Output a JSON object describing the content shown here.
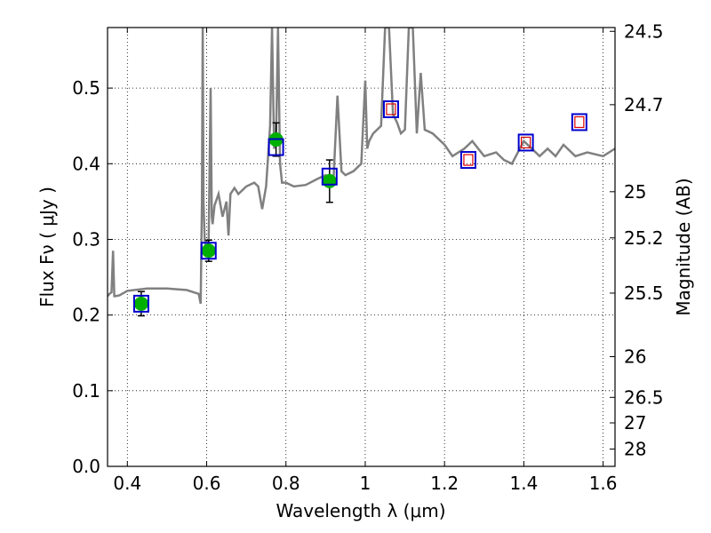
{
  "chart_data": {
    "type": "scatter",
    "title": "",
    "xlabel": "Wavelength  λ (μm)",
    "ylabel": "Flux  Fν  ( μJy )",
    "y2label": "Magnitude (AB)",
    "xlim": [
      0.35,
      1.63
    ],
    "ylim": [
      0.0,
      0.58
    ],
    "grid": true,
    "x_ticks": [
      0.4,
      0.6,
      0.8,
      1.0,
      1.2,
      1.4,
      1.6
    ],
    "x_tick_labels": [
      "0.4",
      "0.6",
      "0.8",
      "1",
      "1.2",
      "1.4",
      "1.6"
    ],
    "y_ticks": [
      0.0,
      0.1,
      0.2,
      0.3,
      0.4,
      0.5
    ],
    "y_tick_labels": [
      "0.0",
      "0.1",
      "0.2",
      "0.3",
      "0.4",
      "0.5"
    ],
    "y2_ticks": [
      {
        "label": "24.5",
        "flux": 0.575
      },
      {
        "label": "24.7",
        "flux": 0.478
      },
      {
        "label": "25",
        "flux": 0.363
      },
      {
        "label": "25.2",
        "flux": 0.302
      },
      {
        "label": "25.5",
        "flux": 0.229
      },
      {
        "label": "26",
        "flux": 0.145
      },
      {
        "label": "26.5",
        "flux": 0.0912
      },
      {
        "label": "27",
        "flux": 0.0575
      },
      {
        "label": "28",
        "flux": 0.0229
      }
    ],
    "colors": {
      "sed_line": "#808080",
      "observed_points": "#00b000",
      "model_boxes": "#0000cc",
      "predicted_boxes": "#dd0000",
      "error_bars": "#000000"
    },
    "series": [
      {
        "type": "line",
        "x": [
          0.35,
          0.355,
          0.36,
          0.364,
          0.367,
          0.37,
          0.38,
          0.4,
          0.45,
          0.5,
          0.55,
          0.58,
          0.585,
          0.588,
          0.59,
          0.592,
          0.595,
          0.6,
          0.605,
          0.61,
          0.613,
          0.615,
          0.62,
          0.63,
          0.64,
          0.65,
          0.655,
          0.66,
          0.67,
          0.68,
          0.7,
          0.72,
          0.73,
          0.74,
          0.75,
          0.76,
          0.765,
          0.77,
          0.775,
          0.78,
          0.785,
          0.79,
          0.8,
          0.82,
          0.85,
          0.88,
          0.9,
          0.92,
          0.93,
          0.94,
          0.95,
          0.97,
          0.99,
          1.0,
          1.005,
          1.01,
          1.02,
          1.04,
          1.05,
          1.06,
          1.07,
          1.08,
          1.09,
          1.1,
          1.11,
          1.12,
          1.13,
          1.14,
          1.15,
          1.17,
          1.2,
          1.22,
          1.25,
          1.27,
          1.3,
          1.33,
          1.35,
          1.37,
          1.4,
          1.42,
          1.44,
          1.46,
          1.48,
          1.5,
          1.53,
          1.56,
          1.6,
          1.63
        ],
        "y": [
          0.225,
          0.228,
          0.23,
          0.285,
          0.225,
          0.225,
          0.226,
          0.232,
          0.235,
          0.235,
          0.233,
          0.228,
          0.215,
          0.35,
          0.58,
          0.35,
          0.3,
          0.285,
          0.3,
          0.5,
          0.33,
          0.32,
          0.345,
          0.36,
          0.33,
          0.35,
          0.305,
          0.36,
          0.368,
          0.36,
          0.37,
          0.375,
          0.37,
          0.34,
          0.37,
          0.45,
          0.58,
          0.42,
          0.43,
          0.58,
          0.4,
          0.375,
          0.375,
          0.37,
          0.372,
          0.38,
          0.385,
          0.38,
          0.49,
          0.39,
          0.385,
          0.39,
          0.4,
          0.51,
          0.42,
          0.43,
          0.44,
          0.45,
          0.58,
          0.58,
          0.465,
          0.455,
          0.44,
          0.445,
          0.58,
          0.58,
          0.44,
          0.52,
          0.445,
          0.44,
          0.425,
          0.41,
          0.42,
          0.43,
          0.41,
          0.415,
          0.405,
          0.4,
          0.43,
          0.42,
          0.41,
          0.42,
          0.41,
          0.425,
          0.41,
          0.415,
          0.41,
          0.42
        ]
      },
      {
        "type": "scatter",
        "x": [
          0.435,
          0.605,
          0.775,
          0.91
        ],
        "y": [
          0.215,
          0.285,
          0.432,
          0.377
        ],
        "yerr": [
          0.016,
          0.014,
          0.022,
          0.028
        ]
      },
      {
        "type": "scatter",
        "marker": "square",
        "x": [
          0.435,
          0.605,
          0.775,
          0.91,
          1.065,
          1.26,
          1.405,
          1.54
        ],
        "y": [
          0.215,
          0.285,
          0.422,
          0.383,
          0.472,
          0.405,
          0.428,
          0.455
        ]
      },
      {
        "type": "scatter",
        "marker": "square-small",
        "x": [
          1.065,
          1.26,
          1.405,
          1.54
        ],
        "y": [
          0.472,
          0.405,
          0.428,
          0.455
        ]
      }
    ]
  }
}
